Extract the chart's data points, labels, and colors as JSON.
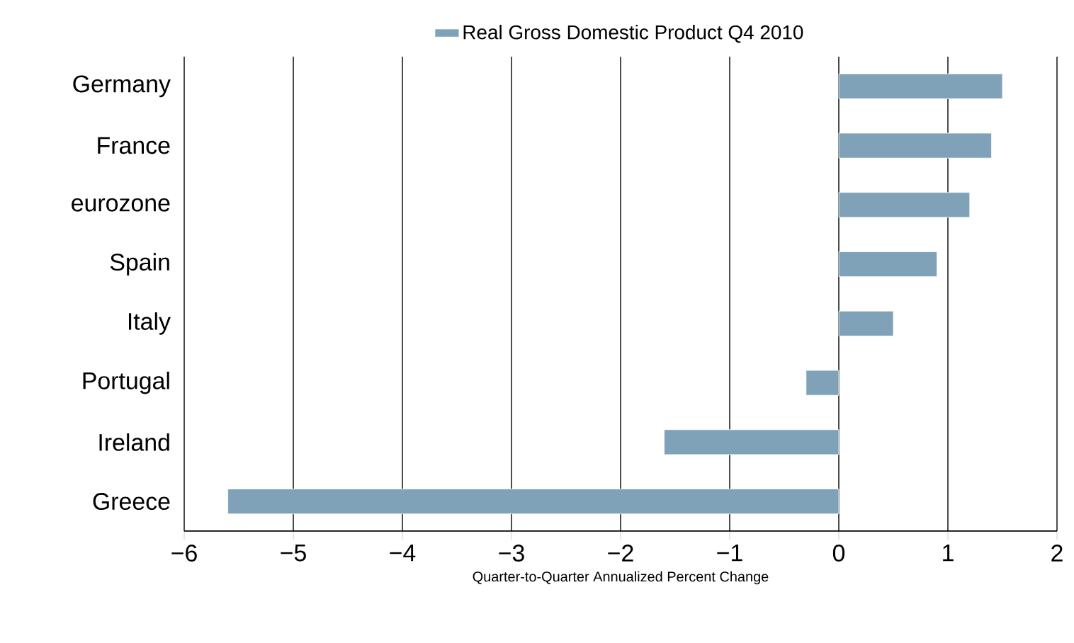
{
  "chart_data": {
    "type": "bar",
    "orientation": "horizontal",
    "xlabel": "Quarter-to-Quarter Annualized Percent Change",
    "categories": [
      "Germany",
      "France",
      "eurozone",
      "Spain",
      "Italy",
      "Portugal",
      "Ireland",
      "Greece"
    ],
    "series": [
      {
        "name": "Real Gross Domestic Product Q4 2010",
        "color": "#7fa2b9",
        "values": [
          1.5,
          1.4,
          1.2,
          0.9,
          0.5,
          -0.3,
          -1.6,
          -5.6
        ]
      }
    ],
    "xlim": [
      -6,
      2
    ],
    "xticks": [
      {
        "value": -6,
        "label": "−6"
      },
      {
        "value": -5,
        "label": "−5"
      },
      {
        "value": -4,
        "label": "−4"
      },
      {
        "value": -3,
        "label": "−3"
      },
      {
        "value": -2,
        "label": "−2"
      },
      {
        "value": -1,
        "label": "−1"
      },
      0,
      1,
      2
    ],
    "grid": "x",
    "legend": "top"
  }
}
